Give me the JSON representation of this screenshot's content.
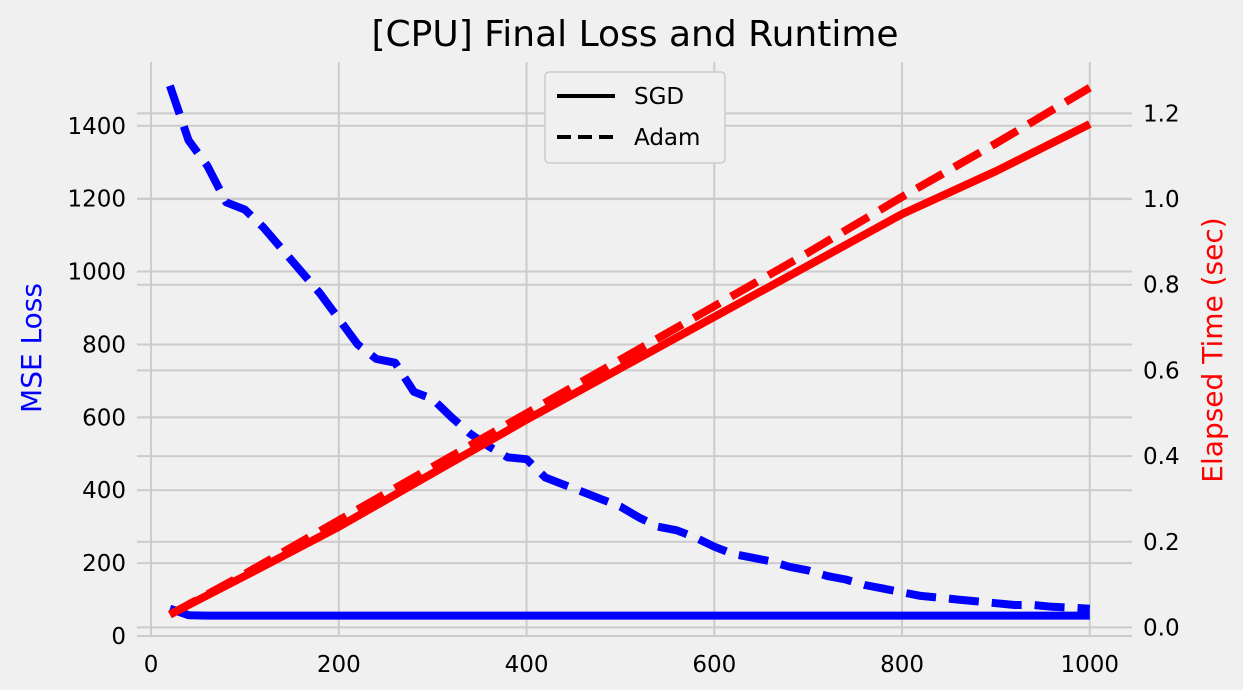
{
  "chart_data": {
    "type": "line",
    "title": "[CPU] Final Loss and Runtime",
    "xlabel": "",
    "ylabel_left": "MSE Loss",
    "ylabel_right": "Elapsed Time (sec)",
    "xlim": [
      -15,
      1045
    ],
    "ylim_left": [
      0,
      1575
    ],
    "ylim_right": [
      -0.02,
      1.32
    ],
    "xticks": [
      0,
      200,
      400,
      600,
      800,
      1000
    ],
    "yticks_left": [
      0,
      200,
      400,
      600,
      800,
      1000,
      1200,
      1400
    ],
    "yticks_right": [
      0.0,
      0.2,
      0.4,
      0.6,
      0.8,
      1.0,
      1.2
    ],
    "yticks_right_labels": [
      "0.0",
      "0.2",
      "0.4",
      "0.6",
      "0.8",
      "1.0",
      "1.2"
    ],
    "grid": true,
    "legend_position": "top-center",
    "legend": [
      {
        "label": "SGD",
        "style": "solid"
      },
      {
        "label": "Adam",
        "style": "dashed"
      }
    ],
    "colors": {
      "loss": "#0000ff",
      "time": "#ff0000",
      "background": "#f0f0f0",
      "grid": "#cbcbcb"
    },
    "series": [
      {
        "name": "SGD",
        "metric": "MSE Loss",
        "axis": "left",
        "style": "solid",
        "color": "#0000ff",
        "x": [
          20,
          40,
          60,
          1000
        ],
        "y": [
          75,
          57,
          56,
          56
        ]
      },
      {
        "name": "Adam",
        "metric": "MSE Loss",
        "axis": "left",
        "style": "dashed",
        "color": "#0000ff",
        "x": [
          20,
          40,
          60,
          80,
          100,
          120,
          140,
          160,
          180,
          200,
          220,
          240,
          260,
          280,
          300,
          320,
          340,
          360,
          380,
          400,
          420,
          440,
          460,
          480,
          500,
          520,
          540,
          560,
          580,
          600,
          620,
          640,
          660,
          680,
          700,
          720,
          740,
          760,
          780,
          800,
          820,
          840,
          860,
          880,
          900,
          920,
          940,
          960,
          980,
          1000
        ],
        "y": [
          1510,
          1360,
          1290,
          1190,
          1170,
          1120,
          1060,
          1000,
          940,
          870,
          800,
          760,
          750,
          670,
          650,
          600,
          555,
          520,
          490,
          485,
          435,
          415,
          395,
          375,
          355,
          325,
          300,
          290,
          270,
          245,
          225,
          215,
          205,
          190,
          180,
          165,
          155,
          140,
          130,
          120,
          110,
          105,
          100,
          95,
          90,
          85,
          85,
          80,
          78,
          75
        ]
      },
      {
        "name": "SGD",
        "metric": "Elapsed Time (sec)",
        "axis": "right",
        "style": "solid",
        "color": "#ff0000",
        "x": [
          20,
          100,
          200,
          300,
          400,
          500,
          600,
          700,
          800,
          900,
          1000
        ],
        "y": [
          0.03,
          0.12,
          0.235,
          0.36,
          0.485,
          0.605,
          0.725,
          0.845,
          0.965,
          1.065,
          1.175
        ]
      },
      {
        "name": "Adam",
        "metric": "Elapsed Time (sec)",
        "axis": "right",
        "style": "dashed",
        "color": "#ff0000",
        "x": [
          20,
          100,
          200,
          300,
          400,
          500,
          600,
          700,
          800,
          900,
          1000
        ],
        "y": [
          0.03,
          0.125,
          0.25,
          0.375,
          0.5,
          0.625,
          0.75,
          0.875,
          1.005,
          1.13,
          1.26
        ]
      }
    ]
  }
}
